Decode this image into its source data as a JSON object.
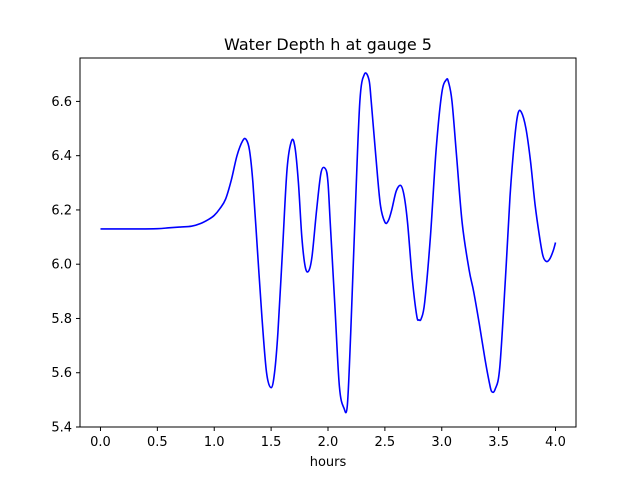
{
  "chart_data": {
    "type": "line",
    "title": "Water Depth h at gauge 5",
    "xlabel": "hours",
    "ylabel": "",
    "xlim": [
      -0.18,
      4.18
    ],
    "ylim": [
      5.4,
      6.76
    ],
    "xticks": [
      0.0,
      0.5,
      1.0,
      1.5,
      2.0,
      2.5,
      3.0,
      3.5,
      4.0
    ],
    "xtick_labels": [
      "0.0",
      "0.5",
      "1.0",
      "1.5",
      "2.0",
      "2.5",
      "3.0",
      "3.5",
      "4.0"
    ],
    "yticks": [
      5.4,
      5.6,
      5.8,
      6.0,
      6.2,
      6.4,
      6.6
    ],
    "ytick_labels": [
      "5.4",
      "5.6",
      "5.8",
      "6.0",
      "6.2",
      "6.4",
      "6.6"
    ],
    "grid": false,
    "series": [
      {
        "color": "#0000ff",
        "x": [
          0.0,
          0.3,
          0.5,
          0.6,
          0.7,
          0.8,
          0.88,
          0.95,
          1.0,
          1.05,
          1.1,
          1.15,
          1.2,
          1.25,
          1.28,
          1.31,
          1.34,
          1.38,
          1.42,
          1.46,
          1.5,
          1.53,
          1.56,
          1.6,
          1.64,
          1.68,
          1.71,
          1.74,
          1.77,
          1.8,
          1.83,
          1.86,
          1.9,
          1.94,
          1.98,
          2.0,
          2.02,
          2.06,
          2.1,
          2.14,
          2.17,
          2.2,
          2.24,
          2.28,
          2.32,
          2.36,
          2.38,
          2.42,
          2.46,
          2.5,
          2.53,
          2.56,
          2.6,
          2.64,
          2.67,
          2.7,
          2.74,
          2.78,
          2.8,
          2.82,
          2.85,
          2.9,
          2.95,
          3.0,
          3.04,
          3.06,
          3.09,
          3.13,
          3.18,
          3.24,
          3.28,
          3.33,
          3.38,
          3.42,
          3.44,
          3.47,
          3.51,
          3.56,
          3.6,
          3.64,
          3.67,
          3.7,
          3.74,
          3.78,
          3.82,
          3.86,
          3.89,
          3.92,
          3.95,
          3.98,
          4.0
        ],
        "y": [
          6.13,
          6.13,
          6.131,
          6.134,
          6.137,
          6.14,
          6.15,
          6.165,
          6.18,
          6.205,
          6.24,
          6.31,
          6.4,
          6.455,
          6.46,
          6.42,
          6.3,
          6.05,
          5.8,
          5.6,
          5.545,
          5.6,
          5.75,
          6.05,
          6.35,
          6.455,
          6.43,
          6.3,
          6.1,
          5.99,
          5.975,
          6.03,
          6.2,
          6.34,
          6.35,
          6.3,
          6.15,
          5.85,
          5.55,
          5.47,
          5.48,
          5.75,
          6.2,
          6.6,
          6.7,
          6.68,
          6.6,
          6.4,
          6.22,
          6.155,
          6.16,
          6.2,
          6.27,
          6.29,
          6.25,
          6.15,
          5.95,
          5.81,
          5.795,
          5.8,
          5.86,
          6.1,
          6.42,
          6.63,
          6.68,
          6.67,
          6.6,
          6.4,
          6.15,
          5.98,
          5.9,
          5.78,
          5.65,
          5.56,
          5.53,
          5.54,
          5.62,
          5.95,
          6.25,
          6.46,
          6.555,
          6.56,
          6.5,
          6.38,
          6.22,
          6.1,
          6.03,
          6.01,
          6.02,
          6.05,
          6.08
        ]
      }
    ]
  }
}
